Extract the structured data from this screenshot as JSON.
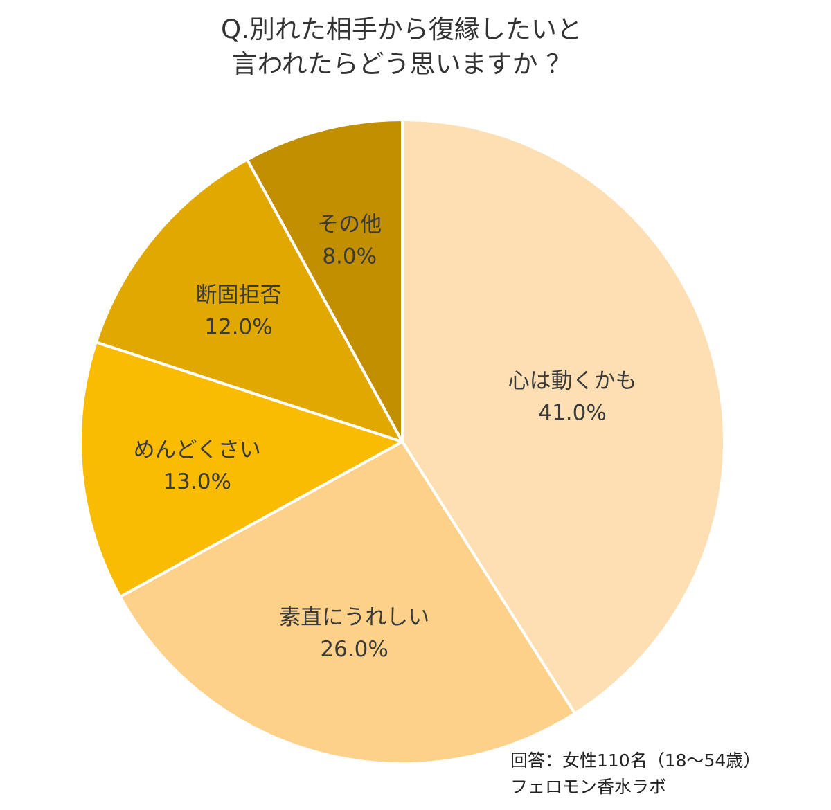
{
  "title": {
    "line1": "Q.別れた相手から復縁したいと",
    "line2": "言われたらどう思いますか ？"
  },
  "footnote": {
    "respondents": "回答：女性110名（18～54歳）",
    "source": "フェロモン香水ラボ"
  },
  "chart_data": {
    "type": "pie",
    "title": "Q.別れた相手から復縁したいと言われたらどう思いますか ？",
    "start": "12 o'clock",
    "direction": "clockwise",
    "slices": [
      {
        "label": "心は動くかも",
        "value": 41.0,
        "display": "41.0%",
        "color": "#FDDFB3"
      },
      {
        "label": "素直にうれしい",
        "value": 26.0,
        "display": "26.0%",
        "color": "#FDD189"
      },
      {
        "label": "めんどくさい",
        "value": 13.0,
        "display": "13.0%",
        "color": "#FABC02"
      },
      {
        "label": "断固拒否",
        "value": 12.0,
        "display": "12.0%",
        "color": "#E0A800"
      },
      {
        "label": "その他",
        "value": 8.0,
        "display": "8.0%",
        "color": "#C18F00"
      }
    ]
  }
}
